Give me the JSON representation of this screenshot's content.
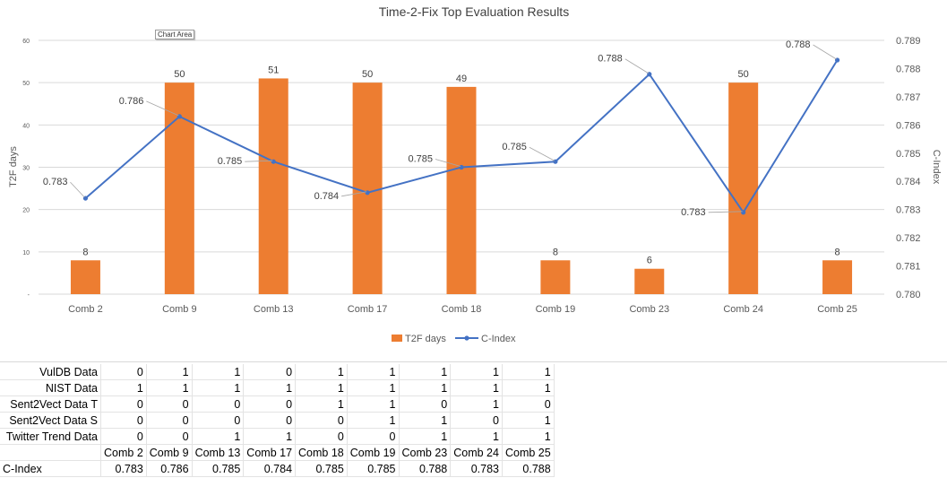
{
  "chart_data": {
    "type": "bar+line",
    "title": "Time-2-Fix Top Evaluation Results",
    "categories": [
      "Comb 2",
      "Comb 9",
      "Comb 13",
      "Comb 17",
      "Comb 18",
      "Comb 19",
      "Comb 23",
      "Comb 24",
      "Comb 25"
    ],
    "series": [
      {
        "name": "T2F days",
        "type": "bar",
        "axis": "left",
        "color": "#ed7d31",
        "values": [
          8,
          50,
          51,
          50,
          49,
          8,
          6,
          50,
          8
        ],
        "labels": [
          "8",
          "50",
          "51",
          "50",
          "49",
          "8",
          "6",
          "50",
          "8"
        ]
      },
      {
        "name": "C-Index",
        "type": "line",
        "axis": "right",
        "color": "#4472c4",
        "values": [
          0.7834,
          0.7863,
          0.7847,
          0.7836,
          0.7845,
          0.7847,
          0.7878,
          0.7829,
          0.7883
        ],
        "labels": [
          "0.783",
          "0.786",
          "0.785",
          "0.784",
          "0.785",
          "0.785",
          "0.788",
          "0.783",
          "0.788"
        ]
      }
    ],
    "ylabel": "T2F days",
    "y2label": "C-Index",
    "ylim": [
      0,
      60
    ],
    "y2lim": [
      0.78,
      0.789
    ],
    "yticks": [
      "-",
      "10",
      "20",
      "30",
      "40",
      "50",
      "60"
    ],
    "y2ticks": [
      "0.780",
      "0.781",
      "0.782",
      "0.783",
      "0.784",
      "0.785",
      "0.786",
      "0.787",
      "0.788",
      "0.789"
    ],
    "grid": true,
    "legend": "bottom",
    "chart_area_tooltip": "Chart Area"
  },
  "table": {
    "rows": [
      {
        "label": "VulDB Data",
        "values": [
          "0",
          "1",
          "1",
          "0",
          "1",
          "1",
          "1",
          "1",
          "1"
        ]
      },
      {
        "label": "NIST Data",
        "values": [
          "1",
          "1",
          "1",
          "1",
          "1",
          "1",
          "1",
          "1",
          "1"
        ]
      },
      {
        "label": "Sent2Vect Data T",
        "values": [
          "0",
          "0",
          "0",
          "0",
          "1",
          "1",
          "0",
          "1",
          "0"
        ]
      },
      {
        "label": "Sent2Vect Data S",
        "values": [
          "0",
          "0",
          "0",
          "0",
          "0",
          "1",
          "1",
          "0",
          "1"
        ]
      },
      {
        "label": "Twitter Trend Data",
        "values": [
          "0",
          "0",
          "1",
          "1",
          "0",
          "0",
          "1",
          "1",
          "1"
        ]
      }
    ],
    "columns": [
      "Comb 2",
      "Comb 9",
      "Comb 13",
      "Comb 17",
      "Comb 18",
      "Comb 19",
      "Comb 23",
      "Comb 24",
      "Comb 25"
    ],
    "cindex_label": "C-Index",
    "cindex_values": [
      "0.783",
      "0.786",
      "0.785",
      "0.784",
      "0.785",
      "0.785",
      "0.788",
      "0.783",
      "0.788"
    ]
  }
}
